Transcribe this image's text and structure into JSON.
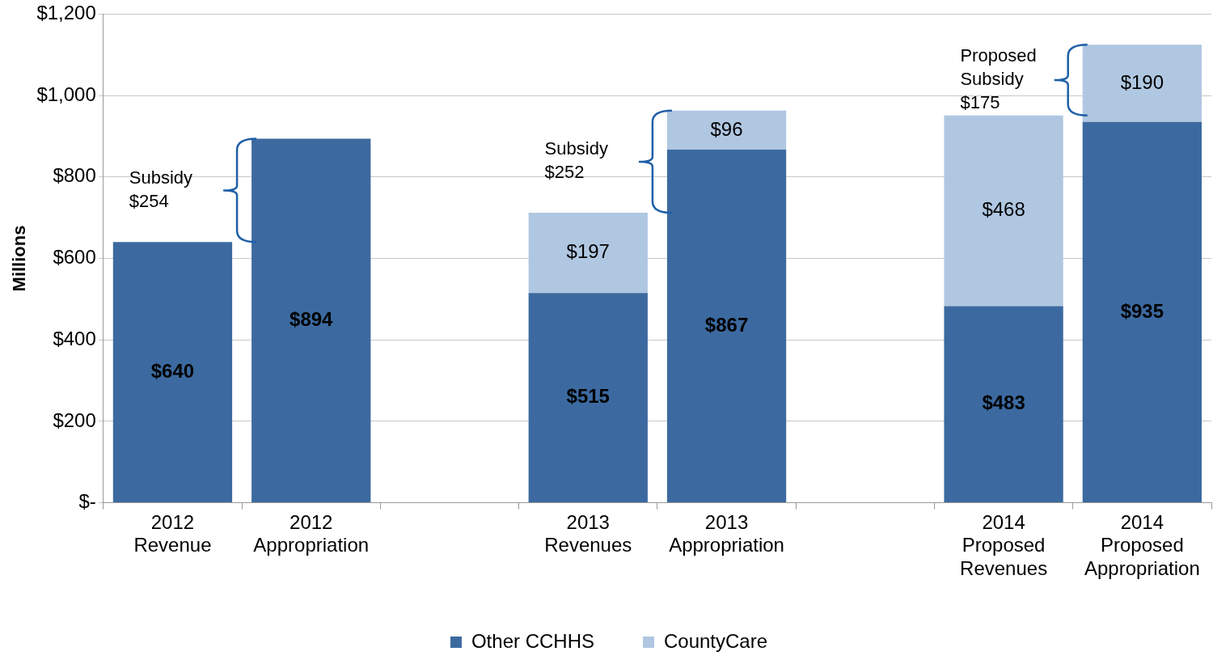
{
  "chart_data": {
    "type": "bar",
    "stacked": true,
    "categories": [
      "2012 Revenue",
      "2012 Appropriation",
      null,
      "2013 Revenues",
      "2013 Appropriation",
      null,
      "2014 Proposed Revenues",
      "2014 Proposed Appropriation"
    ],
    "series": [
      {
        "name": "Other CCHHS",
        "color": "#3c6aa0",
        "values": [
          640,
          894,
          null,
          515,
          867,
          null,
          483,
          935
        ],
        "value_labels": [
          "$640",
          "$894",
          null,
          "$515",
          "$867",
          null,
          "$483",
          "$935"
        ]
      },
      {
        "name": "CountyCare",
        "color": "#b0c7e1",
        "values": [
          null,
          null,
          null,
          197,
          96,
          null,
          468,
          190
        ],
        "value_labels": [
          null,
          null,
          null,
          "$197",
          "$96",
          null,
          "$468",
          "$190"
        ]
      }
    ],
    "ylabel": "Millions",
    "ylim": [
      0,
      1200
    ],
    "yticks": [
      {
        "value": 0,
        "label": "$-"
      },
      {
        "value": 200,
        "label": "$200"
      },
      {
        "value": 400,
        "label": "$400"
      },
      {
        "value": 600,
        "label": "$600"
      },
      {
        "value": 800,
        "label": "$800"
      },
      {
        "value": 1000,
        "label": "$1,000"
      },
      {
        "value": 1200,
        "label": "$1,200"
      }
    ],
    "grid": "y",
    "legend": "bottom",
    "annotations": [
      "Subsidy $254",
      "Subsidy $252",
      "Proposed Subsidy $175"
    ]
  }
}
